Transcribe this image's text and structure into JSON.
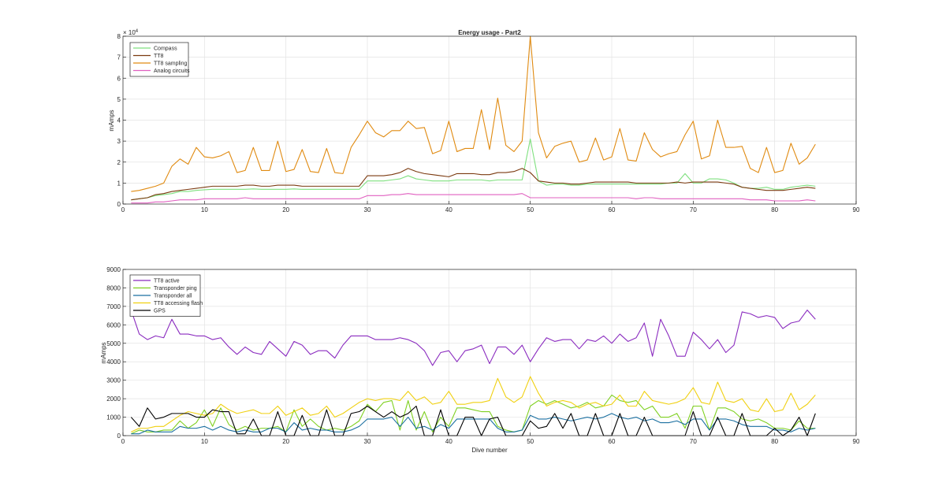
{
  "chart_data": [
    {
      "type": "line",
      "title": "Energy usage - Part2",
      "xlabel": "",
      "ylabel": "mAmps",
      "y_exponent_label": "× 10",
      "y_exponent": "4",
      "xlim": [
        0,
        90
      ],
      "ylim": [
        0,
        80000
      ],
      "x_ticks": [
        0,
        10,
        20,
        30,
        40,
        50,
        60,
        70,
        80,
        90
      ],
      "y_ticks": [
        0,
        10000,
        20000,
        30000,
        40000,
        50000,
        60000,
        70000,
        80000
      ],
      "y_tick_labels": [
        "0",
        "1",
        "2",
        "3",
        "4",
        "5",
        "6",
        "7",
        "8"
      ],
      "grid": true,
      "legend_position": "top-left",
      "x": [
        1,
        2,
        3,
        4,
        5,
        6,
        7,
        8,
        9,
        10,
        11,
        12,
        13,
        14,
        15,
        16,
        17,
        18,
        19,
        20,
        21,
        22,
        23,
        24,
        25,
        26,
        27,
        28,
        29,
        30,
        31,
        32,
        33,
        34,
        35,
        36,
        37,
        38,
        39,
        40,
        41,
        42,
        43,
        44,
        45,
        46,
        47,
        48,
        49,
        50,
        51,
        52,
        53,
        54,
        55,
        56,
        57,
        58,
        59,
        60,
        61,
        62,
        63,
        64,
        65,
        66,
        67,
        68,
        69,
        70,
        71,
        72,
        73,
        74,
        75,
        76,
        77,
        78,
        79,
        80,
        81,
        82,
        83,
        84,
        85
      ],
      "series": [
        {
          "name": "Compass",
          "color": "#7fe07f",
          "values": [
            2000,
            2500,
            3000,
            4000,
            4500,
            5000,
            6000,
            6000,
            6500,
            6800,
            7000,
            7000,
            7000,
            7000,
            7000,
            7200,
            7000,
            7000,
            7000,
            7000,
            7200,
            7000,
            7000,
            7000,
            7000,
            7000,
            7000,
            7000,
            7000,
            11000,
            11000,
            11000,
            11500,
            12000,
            13500,
            12000,
            11500,
            11000,
            11000,
            11000,
            11500,
            11500,
            11500,
            11500,
            11000,
            11500,
            11500,
            11500,
            11500,
            31000,
            11000,
            9000,
            9500,
            9500,
            9000,
            9000,
            9500,
            9500,
            9500,
            9500,
            9500,
            9500,
            9500,
            9500,
            9500,
            9500,
            10000,
            10000,
            14500,
            10000,
            10000,
            12000,
            12000,
            11500,
            10000,
            8000,
            7500,
            7500,
            8000,
            7000,
            7000,
            8000,
            8500,
            9000,
            8500
          ]
        },
        {
          "name": "TT8",
          "color": "#7b3a10",
          "values": [
            2000,
            2500,
            3000,
            4500,
            5000,
            6000,
            6500,
            7000,
            7500,
            8000,
            8500,
            8500,
            8500,
            8500,
            9000,
            9000,
            8500,
            8500,
            9000,
            9000,
            9000,
            8500,
            8500,
            8500,
            8500,
            8500,
            8500,
            8500,
            8500,
            13500,
            13500,
            13500,
            14000,
            15000,
            17000,
            15500,
            14500,
            14000,
            13500,
            13000,
            14500,
            14500,
            14500,
            14000,
            14000,
            15000,
            15000,
            15500,
            17000,
            15000,
            11000,
            10500,
            10000,
            10000,
            9500,
            9500,
            10000,
            10500,
            10500,
            10500,
            10500,
            10500,
            10000,
            10000,
            10000,
            10000,
            10000,
            10500,
            10000,
            10500,
            10500,
            10500,
            10500,
            10000,
            9500,
            8000,
            7500,
            7000,
            6500,
            6500,
            6500,
            7000,
            7500,
            8000,
            7500
          ]
        },
        {
          "name": "TT8 sampling",
          "color": "#e08a10",
          "values": [
            6000,
            6500,
            7500,
            8500,
            10000,
            18000,
            21500,
            19000,
            27000,
            22500,
            22000,
            23000,
            25000,
            15000,
            16000,
            27000,
            16000,
            16000,
            30000,
            15500,
            16500,
            26000,
            15500,
            15000,
            26500,
            15000,
            14500,
            27000,
            33000,
            39500,
            34000,
            32000,
            35000,
            35000,
            39500,
            36000,
            36500,
            24000,
            25500,
            39500,
            25000,
            26500,
            26500,
            45000,
            26000,
            50500,
            28000,
            25000,
            30000,
            80000,
            34000,
            22000,
            27500,
            29000,
            30000,
            20000,
            21000,
            31500,
            21000,
            22500,
            36000,
            21000,
            20500,
            34000,
            26000,
            22500,
            24000,
            25000,
            33000,
            39500,
            21500,
            23000,
            40000,
            27000,
            27000,
            27500,
            17000,
            15000,
            27000,
            15000,
            16000,
            29000,
            19000,
            22000,
            28500
          ]
        },
        {
          "name": "Analog circuits",
          "color": "#e060c0",
          "values": [
            500,
            500,
            500,
            1000,
            1000,
            1500,
            2000,
            2000,
            2000,
            2500,
            2500,
            2500,
            2500,
            2500,
            3000,
            2500,
            2500,
            2500,
            2500,
            2500,
            2500,
            2500,
            2500,
            2500,
            2500,
            2500,
            2500,
            2500,
            2500,
            4000,
            4000,
            4000,
            4500,
            4500,
            5000,
            4500,
            4500,
            4500,
            4500,
            4500,
            4500,
            4500,
            4500,
            4500,
            4500,
            4500,
            4500,
            4500,
            5000,
            3000,
            3000,
            3000,
            3000,
            3000,
            3000,
            3000,
            3000,
            3000,
            3000,
            3000,
            3000,
            3000,
            2500,
            3000,
            3000,
            2500,
            2500,
            2500,
            2500,
            2500,
            2500,
            2500,
            2500,
            2500,
            2500,
            2500,
            2000,
            2000,
            2000,
            1500,
            1500,
            1500,
            1500,
            2000,
            1500
          ]
        }
      ]
    },
    {
      "type": "line",
      "title": "",
      "xlabel": "Dive number",
      "ylabel": "mAmps",
      "xlim": [
        0,
        90
      ],
      "ylim": [
        0,
        9000
      ],
      "x_ticks": [
        0,
        10,
        20,
        30,
        40,
        50,
        60,
        70,
        80,
        90
      ],
      "y_ticks": [
        0,
        1000,
        2000,
        3000,
        4000,
        5000,
        6000,
        7000,
        8000,
        9000
      ],
      "grid": true,
      "legend_position": "top-left",
      "x": [
        1,
        2,
        3,
        4,
        5,
        6,
        7,
        8,
        9,
        10,
        11,
        12,
        13,
        14,
        15,
        16,
        17,
        18,
        19,
        20,
        21,
        22,
        23,
        24,
        25,
        26,
        27,
        28,
        29,
        30,
        31,
        32,
        33,
        34,
        35,
        36,
        37,
        38,
        39,
        40,
        41,
        42,
        43,
        44,
        45,
        46,
        47,
        48,
        49,
        50,
        51,
        52,
        53,
        54,
        55,
        56,
        57,
        58,
        59,
        60,
        61,
        62,
        63,
        64,
        65,
        66,
        67,
        68,
        69,
        70,
        71,
        72,
        73,
        74,
        75,
        76,
        77,
        78,
        79,
        80,
        81,
        82,
        83,
        84,
        85
      ],
      "series": [
        {
          "name": "TT8 active",
          "color": "#8a2bbf",
          "values": [
            6800,
            5500,
            5200,
            5400,
            5300,
            6300,
            5500,
            5500,
            5400,
            5400,
            5200,
            5300,
            4800,
            4400,
            4800,
            4500,
            4400,
            5100,
            4700,
            4300,
            5100,
            4900,
            4400,
            4600,
            4600,
            4200,
            4900,
            5400,
            5400,
            5400,
            5200,
            5200,
            5200,
            5300,
            5200,
            5000,
            4600,
            3800,
            4500,
            4600,
            4000,
            4600,
            4700,
            4900,
            3900,
            4800,
            4800,
            4400,
            4900,
            4000,
            4700,
            5300,
            5100,
            5200,
            5200,
            4700,
            5200,
            5100,
            5400,
            5000,
            5500,
            5100,
            5300,
            6100,
            4300,
            6300,
            5400,
            4300,
            4300,
            5600,
            5200,
            4700,
            5200,
            4500,
            4900,
            6700,
            6600,
            6400,
            6500,
            6400,
            5800,
            6100,
            6200,
            6800,
            6300
          ]
        },
        {
          "name": "Transponder ping",
          "color": "#7fd020",
          "values": [
            100,
            300,
            200,
            200,
            300,
            300,
            800,
            400,
            700,
            1400,
            500,
            1500,
            600,
            300,
            500,
            300,
            400,
            400,
            500,
            200,
            1400,
            500,
            900,
            500,
            300,
            400,
            300,
            500,
            800,
            1700,
            1300,
            1800,
            1900,
            300,
            1900,
            300,
            1300,
            200,
            1000,
            500,
            1500,
            1500,
            1400,
            1300,
            1300,
            500,
            300,
            200,
            300,
            1600,
            1900,
            1700,
            1900,
            1700,
            1500,
            1600,
            1800,
            1500,
            1600,
            2200,
            1900,
            1800,
            1900,
            1400,
            1600,
            1000,
            1000,
            1200,
            400,
            1600,
            1600,
            300,
            1500,
            1500,
            1300,
            900,
            800,
            900,
            700,
            400,
            400,
            300,
            800,
            400,
            400
          ]
        },
        {
          "name": "Transponder all",
          "color": "#1a6fa0",
          "values": [
            100,
            100,
            300,
            200,
            200,
            200,
            500,
            400,
            400,
            500,
            300,
            500,
            300,
            200,
            300,
            200,
            200,
            400,
            400,
            200,
            700,
            300,
            400,
            300,
            300,
            200,
            200,
            300,
            500,
            900,
            900,
            900,
            1000,
            500,
            1000,
            400,
            500,
            300,
            600,
            400,
            900,
            900,
            900,
            900,
            900,
            400,
            200,
            200,
            300,
            1100,
            900,
            900,
            1000,
            900,
            800,
            900,
            1000,
            900,
            1000,
            1200,
            1000,
            900,
            1000,
            800,
            900,
            700,
            700,
            800,
            600,
            900,
            900,
            300,
            900,
            900,
            800,
            600,
            500,
            500,
            500,
            300,
            300,
            200,
            400,
            300,
            400
          ]
        },
        {
          "name": "TT8 accessing flash",
          "color": "#f0d010",
          "values": [
            200,
            400,
            400,
            500,
            500,
            800,
            1100,
            1300,
            1200,
            1100,
            1200,
            1700,
            1400,
            1200,
            1300,
            1400,
            1200,
            1200,
            1600,
            1100,
            1300,
            1500,
            1100,
            1200,
            1600,
            1000,
            1200,
            1500,
            1800,
            2000,
            1900,
            2000,
            2000,
            1900,
            2400,
            1900,
            2100,
            1700,
            1800,
            2400,
            1700,
            1700,
            1800,
            1800,
            1900,
            3100,
            2100,
            1800,
            2100,
            3200,
            2300,
            1600,
            1800,
            1900,
            1800,
            1500,
            1700,
            1800,
            1600,
            1700,
            2200,
            1600,
            1600,
            2400,
            1900,
            1800,
            1700,
            1800,
            2000,
            2600,
            1800,
            1700,
            2900,
            1900,
            1800,
            2000,
            1400,
            1300,
            2000,
            1300,
            1400,
            2300,
            1400,
            1700,
            2200
          ]
        },
        {
          "name": "GPS",
          "color": "#000000",
          "values": [
            1000,
            500,
            1500,
            900,
            1000,
            1200,
            1200,
            1200,
            1000,
            1000,
            1400,
            1300,
            1300,
            100,
            100,
            900,
            0,
            0,
            1300,
            0,
            0,
            1100,
            0,
            0,
            1400,
            0,
            0,
            1200,
            1300,
            1600,
            1300,
            1000,
            1300,
            1000,
            1200,
            1600,
            0,
            0,
            1400,
            0,
            0,
            1000,
            1000,
            0,
            900,
            1000,
            0,
            0,
            0,
            800,
            400,
            500,
            1200,
            400,
            1200,
            0,
            0,
            1200,
            0,
            0,
            1200,
            0,
            0,
            1000,
            0,
            0,
            0,
            0,
            0,
            1300,
            0,
            0,
            1000,
            0,
            0,
            1200,
            0,
            0,
            0,
            400,
            0,
            300,
            1000,
            0,
            1200
          ]
        }
      ]
    }
  ]
}
